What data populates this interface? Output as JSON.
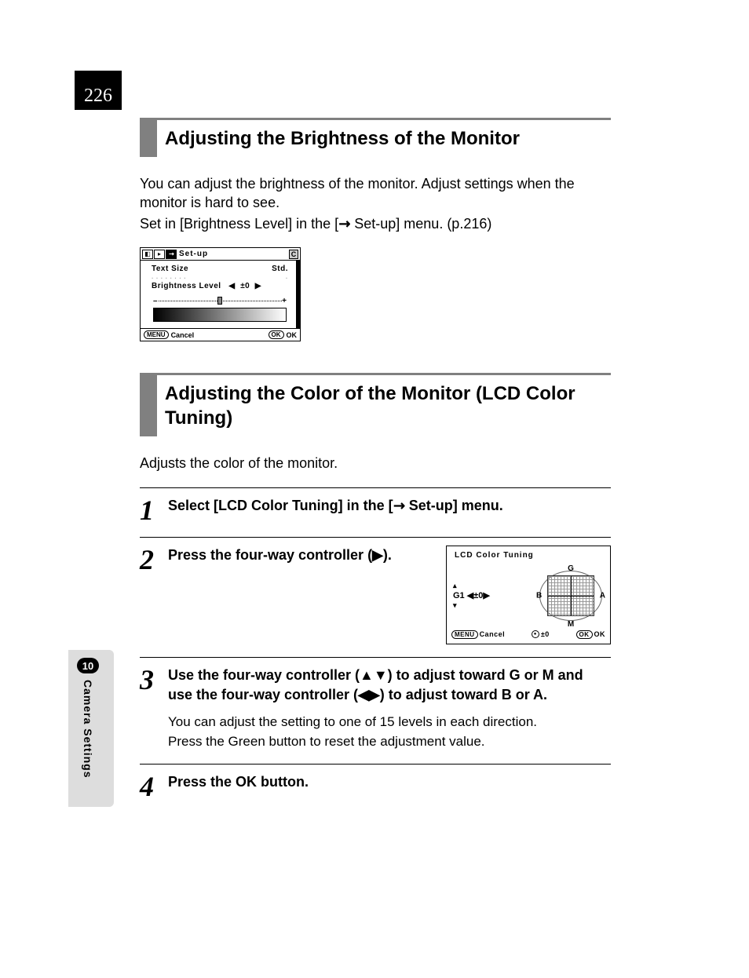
{
  "page_number": "226",
  "sidebar": {
    "chapter_number": "10",
    "chapter_label": "Camera Settings"
  },
  "section1": {
    "heading": "Adjusting the Brightness of the Monitor",
    "intro_line1": "You can adjust the brightness of the monitor. Adjust settings when the monitor is hard to see.",
    "intro_line2_a": "Set in [Brightness Level] in the [",
    "intro_line2_b": " Set-up] menu. (p.216)"
  },
  "lcd1": {
    "title": "Set-up",
    "corner": "C",
    "row1_label": "Text Size",
    "row1_value": "Std.",
    "brightness_label": "Brightness Level",
    "brightness_value": "±0",
    "footer_menu": "MENU",
    "footer_cancel": "Cancel",
    "footer_ok_pill": "OK",
    "footer_ok": "OK"
  },
  "section2": {
    "heading": "Adjusting the Color of the Monitor (LCD Color Tuning)",
    "intro": "Adjusts the color of the monitor."
  },
  "steps": {
    "s1": {
      "num": "1",
      "title_a": "Select [LCD Color Tuning] in the [",
      "title_b": " Set-up] menu."
    },
    "s2": {
      "num": "2",
      "title": "Press the four-way controller (▶)."
    },
    "s3": {
      "num": "3",
      "title": "Use the four-way controller (▲▼) to adjust toward G or M and use the four-way controller (◀▶) to adjust toward B or A.",
      "desc1": "You can adjust the setting to one of 15 levels in each direction.",
      "desc2": "Press the Green button to reset the adjustment value."
    },
    "s4": {
      "num": "4",
      "title_a": "Press the ",
      "title_ok": "OK",
      "title_b": " button."
    }
  },
  "lcd2": {
    "title": "LCD Color Tuning",
    "readout_g": "G1",
    "readout_val": "±0",
    "labels": {
      "g": "G",
      "m": "M",
      "b": "B",
      "a": "A"
    },
    "footer_menu": "MENU",
    "footer_cancel": "Cancel",
    "footer_reset": "±0",
    "footer_ok_pill": "OK",
    "footer_ok": "OK"
  }
}
